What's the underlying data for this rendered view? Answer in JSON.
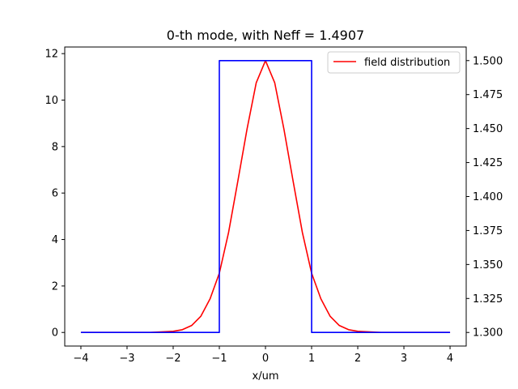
{
  "chart_data": {
    "type": "line",
    "title": "0-th mode, with Neff = 1.4907",
    "xlabel": "x/um",
    "ylabel": "",
    "y2label": "",
    "xlim": [
      -4.35,
      4.35
    ],
    "ylim": [
      -0.585,
      12.285
    ],
    "y2lim": [
      1.29,
      1.51
    ],
    "xticks": [
      -4,
      -3,
      -2,
      -1,
      0,
      1,
      2,
      3,
      4
    ],
    "xtick_labels": [
      "−4",
      "−3",
      "−2",
      "−1",
      "0",
      "1",
      "2",
      "3",
      "4"
    ],
    "yticks": [
      0,
      2,
      4,
      6,
      8,
      10,
      12
    ],
    "ytick_labels": [
      "0",
      "2",
      "4",
      "6",
      "8",
      "10",
      "12"
    ],
    "y2ticks": [
      1.3,
      1.325,
      1.35,
      1.375,
      1.4,
      1.425,
      1.45,
      1.475,
      1.5
    ],
    "y2tick_labels": [
      "1.300",
      "1.325",
      "1.350",
      "1.375",
      "1.400",
      "1.425",
      "1.450",
      "1.475",
      "1.500"
    ],
    "grid": false,
    "legend_position": "top-right",
    "series": [
      {
        "name": "field distribution",
        "axis": "left",
        "color": "#ff0000",
        "x": [
          -4.0,
          -3.0,
          -2.5,
          -2.0,
          -1.8,
          -1.6,
          -1.4,
          -1.2,
          -1.0,
          -0.8,
          -0.6,
          -0.4,
          -0.2,
          0.0,
          0.2,
          0.4,
          0.6,
          0.8,
          1.0,
          1.2,
          1.4,
          1.6,
          1.8,
          2.0,
          2.5,
          3.0,
          4.0
        ],
        "y": [
          0.0,
          0.0,
          0.0,
          0.05,
          0.12,
          0.3,
          0.7,
          1.45,
          2.55,
          4.3,
          6.5,
          8.75,
          10.75,
          11.7,
          10.75,
          8.75,
          6.5,
          4.3,
          2.55,
          1.45,
          0.7,
          0.3,
          0.12,
          0.05,
          0.0,
          0.0,
          0.0
        ]
      },
      {
        "axis": "right",
        "color": "#0000ff",
        "x": [
          -4.0,
          -1.0,
          -1.0,
          1.0,
          1.0,
          4.0
        ],
        "y": [
          1.3,
          1.3,
          1.5,
          1.5,
          1.3,
          1.3
        ]
      }
    ]
  }
}
